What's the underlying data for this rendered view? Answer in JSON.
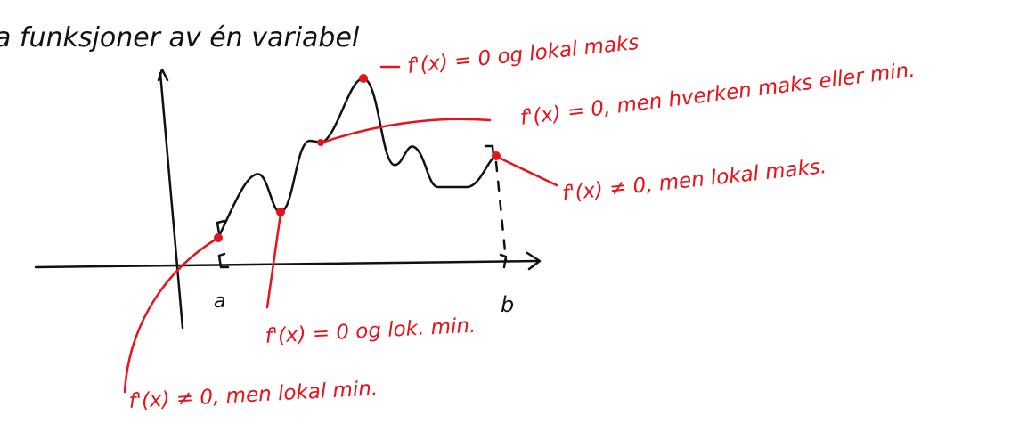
{
  "header": {
    "title": "a funksjoner av én variabel"
  },
  "annotations": {
    "local_max": "f'(x) = 0 og lokal maks",
    "saddle": "f'(x) = 0, men hverken maks eller min.",
    "endpoint_max": "f'(x) ≠ 0, men lokal maks.",
    "local_min": "f'(x) = 0 og lok. min.",
    "endpoint_min": "f'(x) ≠ 0, men lokal min."
  },
  "axis_labels": {
    "a": "a",
    "b": "b"
  }
}
